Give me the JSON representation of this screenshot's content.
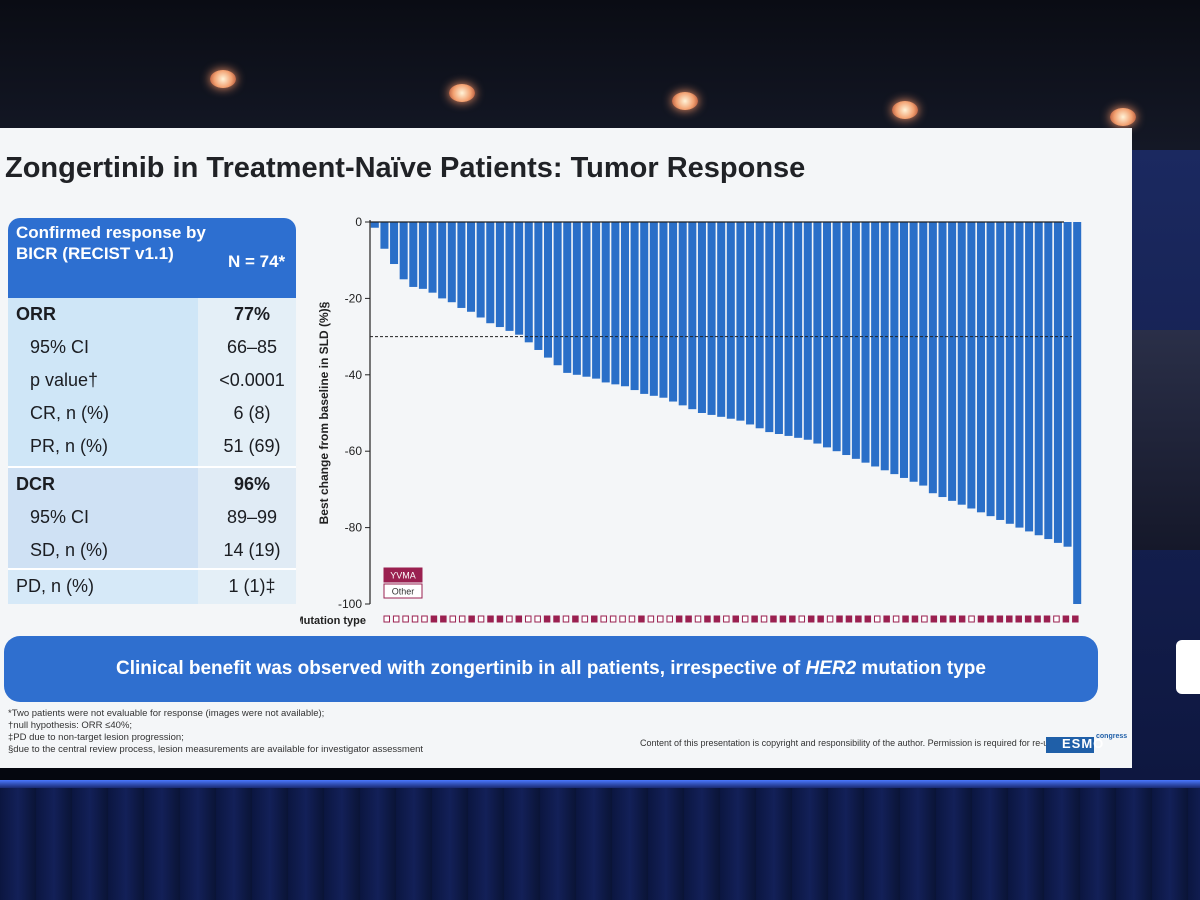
{
  "slide": {
    "title": "Zongertinib in Treatment-Naïve Patients: Tumor Response",
    "table": {
      "header_label": "Confirmed response by BICR (RECIST v1.1)",
      "header_n": "N = 74*",
      "orr": {
        "label": "ORR",
        "value": "77%",
        "rows": [
          {
            "label": "95% CI",
            "value": "66–85"
          },
          {
            "label": "p value†",
            "value": "<0.0001"
          },
          {
            "label": "CR, n (%)",
            "value": "6 (8)"
          },
          {
            "label": "PR, n (%)",
            "value": "51 (69)"
          }
        ]
      },
      "dcr": {
        "label": "DCR",
        "value": "96%",
        "rows": [
          {
            "label": "95% CI",
            "value": "89–99"
          },
          {
            "label": "SD, n (%)",
            "value": "14 (19)"
          }
        ]
      },
      "pd": {
        "label": "PD, n (%)",
        "value": "1 (1)‡"
      }
    },
    "banner": {
      "before": "Clinical benefit was observed with zongertinib in all patients, irrespective of ",
      "italic": "HER2",
      "after": " mutation type"
    },
    "footnotes": [
      "*Two patients were not evaluable for response (images were not available);",
      "†null hypothesis: ORR ≤40%;",
      "‡PD due to non-target lesion progression;",
      "§due to the central review process, lesion measurements are available for investigator assessment"
    ],
    "copyright": "Content of this presentation is copyright and responsibility of the author. Permission is required for re-use.",
    "logo_text": "ESMO",
    "logo_sub": "congress"
  },
  "chart_data": {
    "type": "bar",
    "ylabel": "Best change from baseline in SLD (%)§",
    "ylim": [
      -100,
      0
    ],
    "yticks": [
      0,
      -20,
      -40,
      -60,
      -80,
      -100
    ],
    "reference_line": -30,
    "legend": [
      {
        "name": "YVMA",
        "color": "#9a2050",
        "filled": true
      },
      {
        "name": "Other",
        "color": "#9a2050",
        "filled": false
      }
    ],
    "mutation_row_label": "Mutation type",
    "bar_color": "#2a6fc8",
    "values": [
      -1.5,
      -7,
      -11,
      -15,
      -17,
      -17.5,
      -18.5,
      -20,
      -21,
      -22.5,
      -23.5,
      -25,
      -26.5,
      -27.5,
      -28.5,
      -29.5,
      -31.5,
      -33.5,
      -35.5,
      -37.5,
      -39.5,
      -40,
      -40.5,
      -41,
      -42,
      -42.5,
      -43,
      -44,
      -45,
      -45.5,
      -46,
      -47,
      -48,
      -49,
      -50,
      -50.5,
      -51,
      -51.5,
      -52,
      -53,
      -54,
      -55,
      -55.5,
      -56,
      -56.5,
      -57,
      -58,
      -59,
      -60,
      -61,
      -62,
      -63,
      -64,
      -65,
      -66,
      -67,
      -68,
      -69,
      -71,
      -72,
      -73,
      -74,
      -75,
      -76,
      -77,
      -78,
      -79,
      -80,
      -81,
      -82,
      -83,
      -84,
      -85,
      -100
    ],
    "mutation_types": [
      "Other",
      "Other",
      "Other",
      "Other",
      "Other",
      "YVMA",
      "YVMA",
      "Other",
      "Other",
      "YVMA",
      "Other",
      "YVMA",
      "YVMA",
      "Other",
      "YVMA",
      "Other",
      "Other",
      "YVMA",
      "YVMA",
      "Other",
      "YVMA",
      "Other",
      "YVMA",
      "Other",
      "Other",
      "Other",
      "Other",
      "YVMA",
      "Other",
      "Other",
      "Other",
      "YVMA",
      "YVMA",
      "Other",
      "YVMA",
      "YVMA",
      "Other",
      "YVMA",
      "Other",
      "YVMA",
      "Other",
      "YVMA",
      "YVMA",
      "YVMA",
      "Other",
      "YVMA",
      "YVMA",
      "Other",
      "YVMA",
      "YVMA",
      "YVMA",
      "YVMA",
      "Other",
      "YVMA",
      "Other",
      "YVMA",
      "YVMA",
      "Other",
      "YVMA",
      "YVMA",
      "YVMA",
      "YVMA",
      "Other",
      "YVMA",
      "YVMA",
      "YVMA",
      "YVMA",
      "YVMA",
      "YVMA",
      "YVMA",
      "YVMA",
      "Other",
      "YVMA",
      "YVMA"
    ]
  }
}
